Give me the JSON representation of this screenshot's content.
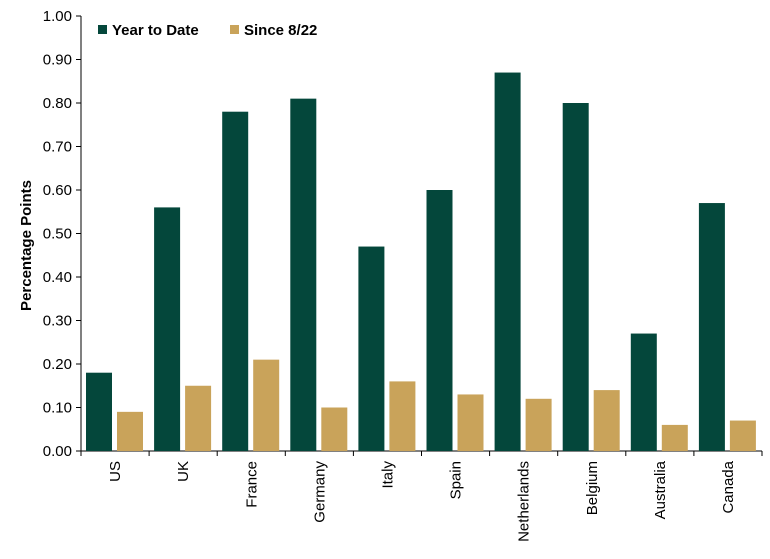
{
  "chart_data": {
    "type": "bar",
    "title": "",
    "xlabel": "",
    "ylabel": "Percentage Points",
    "ylim": [
      0,
      1.0
    ],
    "yticks": [
      "0.00",
      "0.10",
      "0.20",
      "0.30",
      "0.40",
      "0.50",
      "0.60",
      "0.70",
      "0.80",
      "0.90",
      "1.00"
    ],
    "grid": false,
    "legend_position": "top-left",
    "categories": [
      "US",
      "UK",
      "France",
      "Germany",
      "Italy",
      "Spain",
      "Netherlands",
      "Belgium",
      "Australia",
      "Canada"
    ],
    "series": [
      {
        "name": "Year to Date",
        "color": "#04473b",
        "values": [
          0.18,
          0.56,
          0.78,
          0.81,
          0.47,
          0.6,
          0.87,
          0.8,
          0.27,
          0.57
        ]
      },
      {
        "name": "Since 8/22",
        "color": "#c9a35a",
        "values": [
          0.09,
          0.15,
          0.21,
          0.1,
          0.16,
          0.13,
          0.12,
          0.14,
          0.06,
          0.07
        ]
      }
    ]
  }
}
